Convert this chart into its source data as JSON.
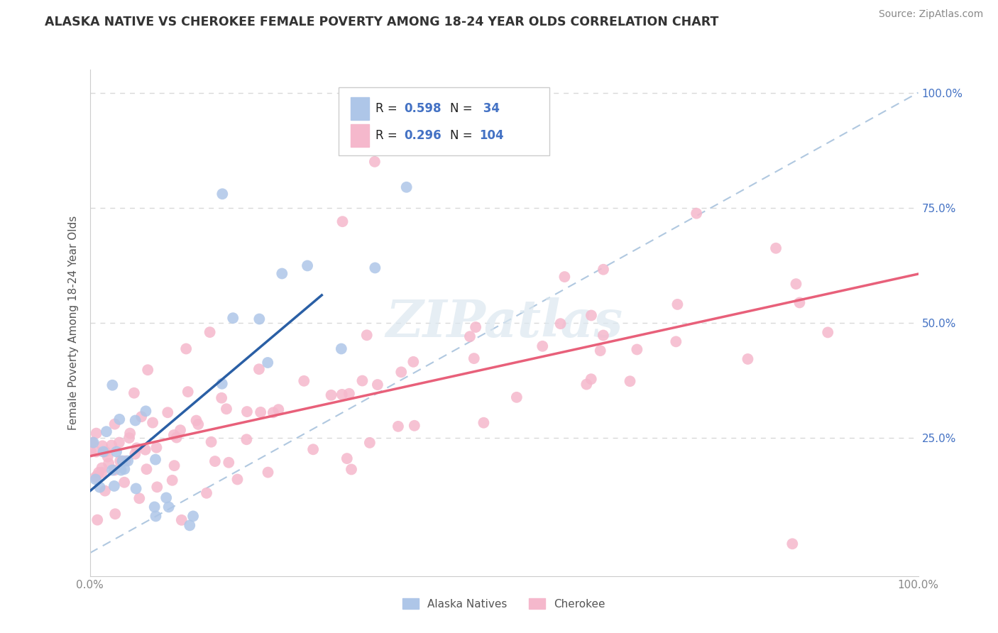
{
  "title": "ALASKA NATIVE VS CHEROKEE FEMALE POVERTY AMONG 18-24 YEAR OLDS CORRELATION CHART",
  "source": "Source: ZipAtlas.com",
  "ylabel": "Female Poverty Among 18-24 Year Olds",
  "alaska_color": "#aec6e8",
  "cherokee_color": "#f5b8cc",
  "alaska_line_color": "#2a5fa5",
  "cherokee_line_color": "#e8607a",
  "diag_line_color": "#b0c8e0",
  "R_color": "#4472c4",
  "N_color": "#4472c4",
  "background_color": "#ffffff",
  "alaska_R": 0.598,
  "alaska_N": 34,
  "cherokee_R": 0.296,
  "cherokee_N": 104,
  "alaska_seed": 77,
  "cherokee_seed": 42,
  "grid_color": "#d8d8d8",
  "spine_color": "#cccccc",
  "tick_color": "#888888",
  "ylabel_color": "#555555",
  "right_tick_color": "#4472c4",
  "watermark_text": "ZIPatlas",
  "legend_text_color": "#222222"
}
